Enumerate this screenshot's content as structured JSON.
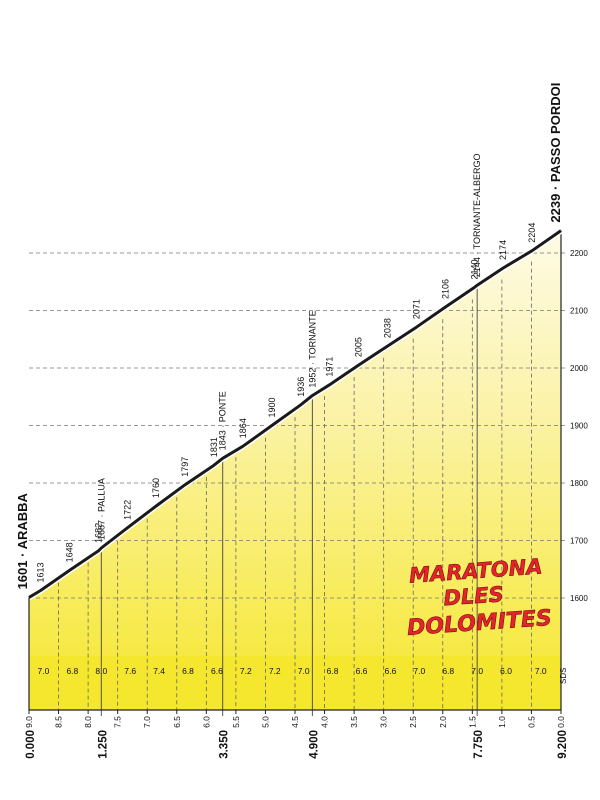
{
  "chart_data": {
    "type": "area",
    "title": "",
    "xlabel": "",
    "ylabel": "",
    "x_unit": "km",
    "ylim": [
      1500,
      2250
    ],
    "y_ticks": [
      1600,
      1700,
      1800,
      1900,
      2000,
      2100,
      2200
    ],
    "km_remaining_ticks": [
      "9.0",
      "8.5",
      "8.0",
      "7.5",
      "7.0",
      "6.5",
      "6.0",
      "5.5",
      "5.0",
      "4.5",
      "4.0",
      "3.5",
      "3.0",
      "2.5",
      "2.0",
      "1.5",
      "1.0",
      "0.5",
      "0.0"
    ],
    "distance_markers": [
      {
        "km": 0.0,
        "label": "0.000"
      },
      {
        "km": 1.25,
        "label": "1.250"
      },
      {
        "km": 3.35,
        "label": "3.350"
      },
      {
        "km": 4.9,
        "label": "4.900"
      },
      {
        "km": 7.75,
        "label": "7.750"
      },
      {
        "km": 9.2,
        "label": "9.200"
      }
    ],
    "profile": [
      {
        "km": 0.0,
        "alt": 1601
      },
      {
        "km": 0.2,
        "alt": 1613
      },
      {
        "km": 0.7,
        "alt": 1648
      },
      {
        "km": 1.2,
        "alt": 1682
      },
      {
        "km": 1.25,
        "alt": 1687
      },
      {
        "km": 1.7,
        "alt": 1722
      },
      {
        "km": 2.2,
        "alt": 1760
      },
      {
        "km": 2.7,
        "alt": 1797
      },
      {
        "km": 3.2,
        "alt": 1831
      },
      {
        "km": 3.35,
        "alt": 1843
      },
      {
        "km": 3.7,
        "alt": 1864
      },
      {
        "km": 4.2,
        "alt": 1900
      },
      {
        "km": 4.7,
        "alt": 1936
      },
      {
        "km": 4.9,
        "alt": 1952
      },
      {
        "km": 5.2,
        "alt": 1971
      },
      {
        "km": 5.7,
        "alt": 2005
      },
      {
        "km": 6.2,
        "alt": 2038
      },
      {
        "km": 6.7,
        "alt": 2071
      },
      {
        "km": 7.2,
        "alt": 2106
      },
      {
        "km": 7.7,
        "alt": 2140
      },
      {
        "km": 7.75,
        "alt": 2144
      },
      {
        "km": 8.2,
        "alt": 2174
      },
      {
        "km": 8.7,
        "alt": 2204
      },
      {
        "km": 9.2,
        "alt": 2239
      }
    ],
    "point_labels": [
      {
        "km": 0.0,
        "text": "1601 · ARABBA",
        "main": true
      },
      {
        "km": 0.2,
        "text": "1613"
      },
      {
        "km": 0.7,
        "text": "1648"
      },
      {
        "km": 1.2,
        "text": "1682"
      },
      {
        "km": 1.25,
        "text": "1687 · PALLUA"
      },
      {
        "km": 1.7,
        "text": "1722"
      },
      {
        "km": 2.2,
        "text": "1760"
      },
      {
        "km": 2.7,
        "text": "1797"
      },
      {
        "km": 3.2,
        "text": "1831"
      },
      {
        "km": 3.35,
        "text": "1843 · PONTE"
      },
      {
        "km": 3.7,
        "text": "1864"
      },
      {
        "km": 4.2,
        "text": "1900"
      },
      {
        "km": 4.7,
        "text": "1936"
      },
      {
        "km": 4.9,
        "text": "1952 · TORNANTE"
      },
      {
        "km": 5.2,
        "text": "1971"
      },
      {
        "km": 5.7,
        "text": "2005"
      },
      {
        "km": 6.2,
        "text": "2038"
      },
      {
        "km": 6.7,
        "text": "2071"
      },
      {
        "km": 7.2,
        "text": "2106"
      },
      {
        "km": 7.7,
        "text": "2140"
      },
      {
        "km": 7.75,
        "text": "2144 · TORNANTE-ALBERGO"
      },
      {
        "km": 8.2,
        "text": "2174"
      },
      {
        "km": 8.7,
        "text": "2204"
      },
      {
        "km": 9.2,
        "text": "2239 · PASSO PORDOI",
        "main": true
      }
    ],
    "gradients": [
      {
        "from_km": 0.0,
        "to_km": 0.5,
        "pct": "7.0"
      },
      {
        "from_km": 0.5,
        "to_km": 1.0,
        "pct": "6.8"
      },
      {
        "from_km": 1.0,
        "to_km": 1.5,
        "pct": "8.0"
      },
      {
        "from_km": 1.5,
        "to_km": 2.0,
        "pct": "7.6"
      },
      {
        "from_km": 2.0,
        "to_km": 2.5,
        "pct": "7.4"
      },
      {
        "from_km": 2.5,
        "to_km": 3.0,
        "pct": "6.8"
      },
      {
        "from_km": 3.0,
        "to_km": 3.5,
        "pct": "6.6"
      },
      {
        "from_km": 3.5,
        "to_km": 4.0,
        "pct": "7.2"
      },
      {
        "from_km": 4.0,
        "to_km": 4.5,
        "pct": "7.2"
      },
      {
        "from_km": 4.5,
        "to_km": 5.0,
        "pct": "7.0"
      },
      {
        "from_km": 5.0,
        "to_km": 5.5,
        "pct": "6.8"
      },
      {
        "from_km": 5.5,
        "to_km": 6.0,
        "pct": "6.6"
      },
      {
        "from_km": 6.0,
        "to_km": 6.5,
        "pct": "6.6"
      },
      {
        "from_km": 6.5,
        "to_km": 7.0,
        "pct": "7.0"
      },
      {
        "from_km": 7.0,
        "to_km": 7.5,
        "pct": "6.8"
      },
      {
        "from_km": 7.5,
        "to_km": 8.0,
        "pct": "7.0"
      },
      {
        "from_km": 8.0,
        "to_km": 8.5,
        "pct": "6.0"
      },
      {
        "from_km": 8.5,
        "to_km": 9.2,
        "pct": "7.0"
      }
    ],
    "colors": {
      "fill_low": "#f5e62e",
      "fill_high": "#fdf9dd",
      "profile_line": "#1a1a1a",
      "logo_red": "#e3242b"
    }
  },
  "logo": {
    "lines": [
      "MARATONA",
      "DLES",
      "DOLOMITES"
    ]
  },
  "credit": "SDS"
}
